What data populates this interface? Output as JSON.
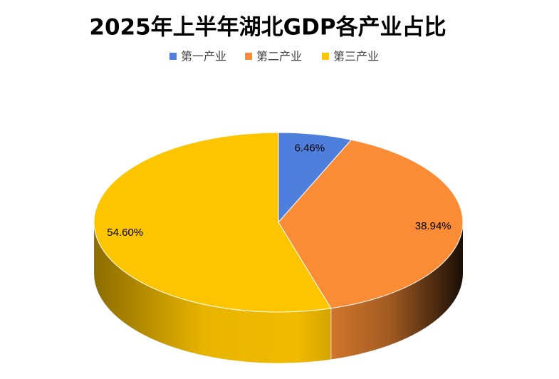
{
  "chart_data": {
    "type": "pie",
    "title": "2025年上半年湖北GDP各产业占比",
    "categories": [
      "第一产业",
      "第二产业",
      "第三产业"
    ],
    "values": [
      6.46,
      38.94,
      54.6
    ],
    "value_labels": [
      "6.46%",
      "38.94%",
      "54.60%"
    ],
    "colors": [
      "#4f7fdc",
      "#f98c34",
      "#fdc400"
    ],
    "legend": "top"
  }
}
